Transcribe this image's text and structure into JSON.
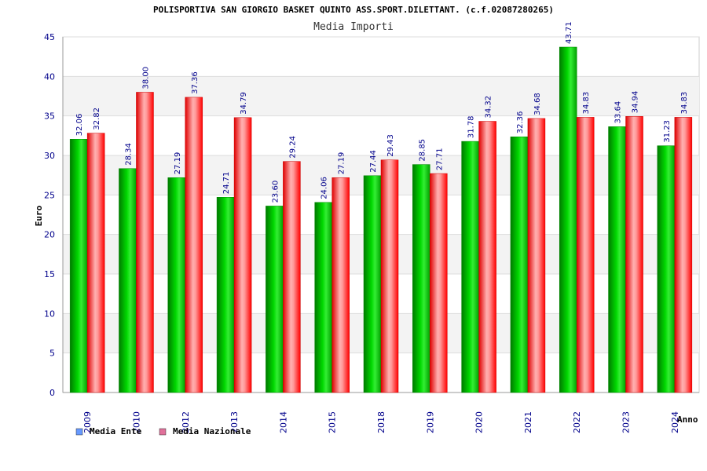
{
  "chart_data": {
    "type": "bar",
    "title": "POLISPORTIVA SAN GIORGIO BASKET QUINTO ASS.SPORT.DILETTANT. (c.f.02087280265)",
    "subtitle": "Media Importi",
    "xlabel": "Anno",
    "ylabel": "Euro",
    "ylim": [
      0,
      45
    ],
    "yticks": [
      0,
      5,
      10,
      15,
      20,
      25,
      30,
      35,
      40,
      45
    ],
    "grid": true,
    "legend_position": "bottom-left",
    "categories": [
      "2009",
      "2010",
      "2012",
      "2013",
      "2014",
      "2015",
      "2018",
      "2019",
      "2020",
      "2021",
      "2022",
      "2023",
      "2024"
    ],
    "series": [
      {
        "name": "Media Ente",
        "color": "#00c000",
        "legend_color": "#6699ff",
        "values": [
          32.06,
          28.34,
          27.19,
          24.71,
          23.6,
          24.06,
          27.44,
          28.85,
          31.78,
          32.36,
          43.71,
          33.64,
          31.23
        ],
        "labels": [
          "32.06",
          "28.34",
          "27.19",
          "24.71",
          "23.60",
          "24.06",
          "27.44",
          "28.85",
          "31.78",
          "32.36",
          "43.71",
          "33.64",
          "31.23"
        ]
      },
      {
        "name": "Media Nazionale",
        "color": "#ff1a1a",
        "legend_color": "#e0709a",
        "values": [
          32.82,
          38.0,
          37.36,
          34.79,
          29.24,
          27.19,
          29.43,
          27.71,
          34.32,
          34.68,
          34.83,
          34.94,
          34.83
        ],
        "labels": [
          "32.82",
          "38.00",
          "37.36",
          "34.79",
          "29.24",
          "27.19",
          "29.43",
          "27.71",
          "34.32",
          "34.68",
          "34.83",
          "34.94",
          "34.83"
        ]
      }
    ]
  }
}
